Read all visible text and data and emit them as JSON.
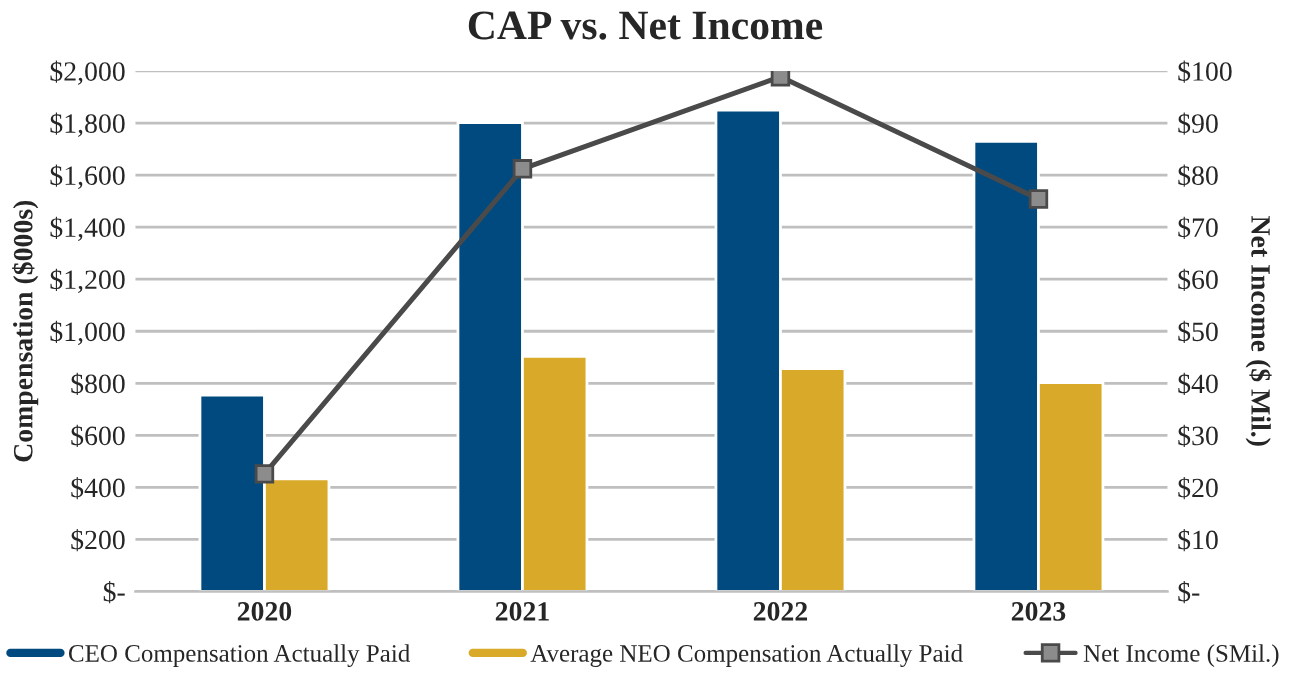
{
  "chart_data": {
    "type": "bar",
    "title": "CAP vs. Net Income",
    "ylabel": "Compensation ($000s)",
    "y2label": "Net Income ($ Mil.)",
    "categories": [
      "2020",
      "2021",
      "2022",
      "2023"
    ],
    "series": [
      {
        "name": "CEO Compensation Actually Paid",
        "color": "#004a80",
        "values": [
          755,
          1802,
          1850,
          1730
        ]
      },
      {
        "name": "Average NEO Compensation Actually Paid",
        "color": "#d9a92a",
        "values": [
          433,
          903,
          856,
          803
        ]
      },
      {
        "name": "Net Income (SMil.)",
        "type": "line",
        "axis": "y2",
        "color": "#4a4a4a",
        "marker": "square",
        "values": [
          22.6,
          81.2,
          98.9,
          75.4
        ]
      }
    ],
    "ylim": [
      0,
      2000
    ],
    "yticks": [
      {
        "value": 0,
        "label": "$-"
      },
      {
        "value": 200,
        "label": "$200"
      },
      {
        "value": 400,
        "label": "$400"
      },
      {
        "value": 600,
        "label": "$600"
      },
      {
        "value": 800,
        "label": "$800"
      },
      {
        "value": 1000,
        "label": "$1,000"
      },
      {
        "value": 1200,
        "label": "$1,200"
      },
      {
        "value": 1400,
        "label": "$1,400"
      },
      {
        "value": 1600,
        "label": "$1,600"
      },
      {
        "value": 1800,
        "label": "$1,800"
      },
      {
        "value": 2000,
        "label": "$2,000"
      }
    ],
    "y2lim": [
      0,
      100
    ],
    "y2ticks": [
      {
        "value": 0,
        "label": "$-"
      },
      {
        "value": 10,
        "label": "$10"
      },
      {
        "value": 20,
        "label": "$20"
      },
      {
        "value": 30,
        "label": "$30"
      },
      {
        "value": 40,
        "label": "$40"
      },
      {
        "value": 50,
        "label": "$50"
      },
      {
        "value": 60,
        "label": "$60"
      },
      {
        "value": 70,
        "label": "$70"
      },
      {
        "value": 80,
        "label": "$80"
      },
      {
        "value": 90,
        "label": "$90"
      },
      {
        "value": 100,
        "label": "$100"
      }
    ],
    "grid": "y",
    "legend": "bottom"
  }
}
